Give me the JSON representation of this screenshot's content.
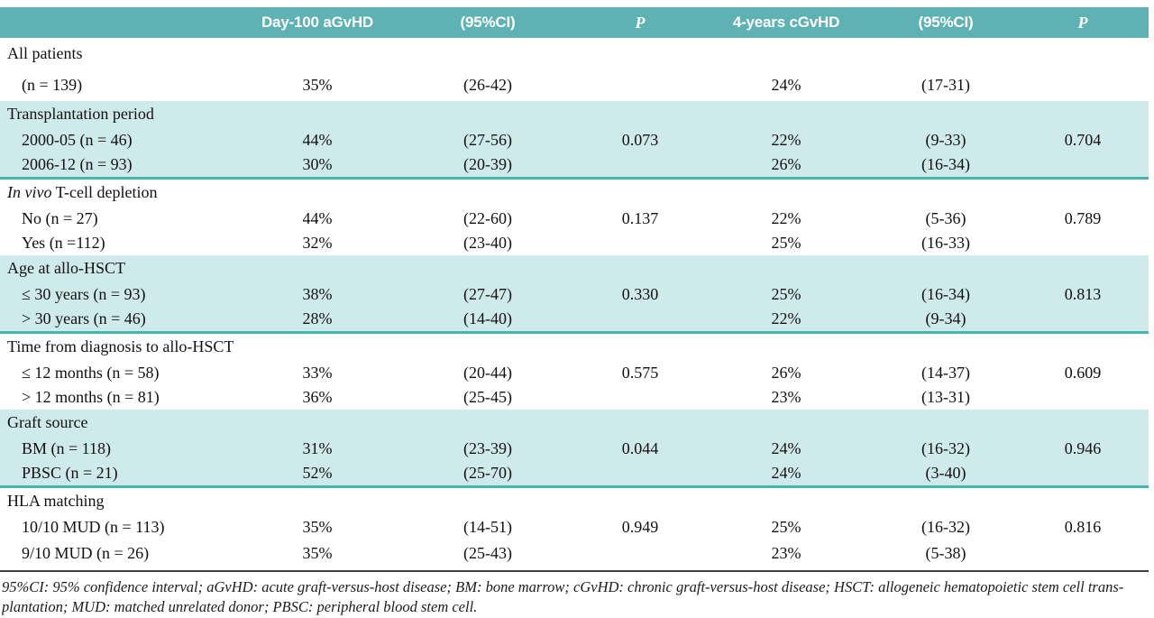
{
  "table": {
    "header": [
      "Day-100 aGvHD",
      "(95%CI)",
      "P",
      "4-years cGvHD",
      "(95%CI)",
      "P"
    ],
    "sections": [
      {
        "label": "All patients",
        "label_italic": "",
        "label_rest": "",
        "tint": false,
        "rows": [
          {
            "label": "(n = 139)",
            "cells": [
              "35%",
              "(26-42)",
              "",
              "24%",
              "(17-31)",
              ""
            ]
          }
        ]
      },
      {
        "label": "Transplantation period",
        "label_italic": "",
        "label_rest": "",
        "tint": true,
        "rows": [
          {
            "label": "2000-05 (n = 46)",
            "cells": [
              "44%",
              "(27-56)",
              "0.073",
              "22%",
              "(9-33)",
              "0.704"
            ]
          },
          {
            "label": "2006-12 (n = 93)",
            "cells": [
              "30%",
              "(20-39)",
              "",
              "26%",
              "(16-34)",
              ""
            ]
          }
        ]
      },
      {
        "label": "In vivo T-cell depletion",
        "label_italic": "In vivo",
        "label_rest": " T-cell depletion",
        "tint": false,
        "rows": [
          {
            "label": "No (n = 27)",
            "cells": [
              "44%",
              "(22-60)",
              "0.137",
              "22%",
              "(5-36)",
              "0.789"
            ]
          },
          {
            "label": "Yes (n =112)",
            "cells": [
              "32%",
              "(23-40)",
              "",
              "25%",
              "(16-33)",
              ""
            ]
          }
        ]
      },
      {
        "label": "Age at allo-HSCT",
        "label_italic": "",
        "label_rest": "",
        "tint": true,
        "rows": [
          {
            "label": "≤ 30 years (n = 93)",
            "cells": [
              "38%",
              "(27-47)",
              "0.330",
              "25%",
              "(16-34)",
              "0.813"
            ]
          },
          {
            "label": "> 30 years (n = 46)",
            "cells": [
              "28%",
              "(14-40)",
              "",
              "22%",
              "(9-34)",
              ""
            ]
          }
        ]
      },
      {
        "label": "Time from diagnosis to allo-HSCT",
        "label_italic": "",
        "label_rest": "",
        "tint": false,
        "rows": [
          {
            "label": "≤ 12 months (n = 58)",
            "cells": [
              "33%",
              "(20-44)",
              "0.575",
              "26%",
              "(14-37)",
              "0.609"
            ]
          },
          {
            "label": "> 12 months (n = 81)",
            "cells": [
              "36%",
              "(25-45)",
              "",
              "23%",
              "(13-31)",
              ""
            ]
          }
        ]
      },
      {
        "label": "Graft source",
        "label_italic": "",
        "label_rest": "",
        "tint": true,
        "rows": [
          {
            "label": "BM (n = 118)",
            "cells": [
              "31%",
              "(23-39)",
              "0.044",
              "24%",
              "(16-32)",
              "0.946"
            ]
          },
          {
            "label": "PBSC (n = 21)",
            "cells": [
              "52%",
              "(25-70)",
              "",
              "24%",
              "(3-40)",
              ""
            ]
          }
        ]
      },
      {
        "label": "HLA matching",
        "label_italic": "",
        "label_rest": "",
        "tint": false,
        "rows": [
          {
            "label": "10/10 MUD (n = 113)",
            "cells": [
              "35%",
              "(14-51)",
              "0.949",
              "25%",
              "(16-32)",
              "0.816"
            ]
          },
          {
            "label": "9/10 MUD (n = 26)",
            "cells": [
              "35%",
              "(25-43)",
              "",
              "23%",
              "(5-38)",
              ""
            ]
          }
        ]
      }
    ],
    "footnote": {
      "line1": "95%CI: 95% confidence interval; aGvHD: acute graft-versus-host disease; BM: bone marrow; cGvHD: chronic graft-versus-host disease; HSCT: allogeneic hematopoietic stem cell trans-",
      "line2": "plantation; MUD: matched unrelated donor; PBSC: peripheral blood stem cell."
    },
    "colors": {
      "header_teal": "#5fb2b3",
      "row_tint": "#cfeaea",
      "section_rule": "#43b7ae",
      "footnote_rule": "#3f3f3f"
    }
  }
}
